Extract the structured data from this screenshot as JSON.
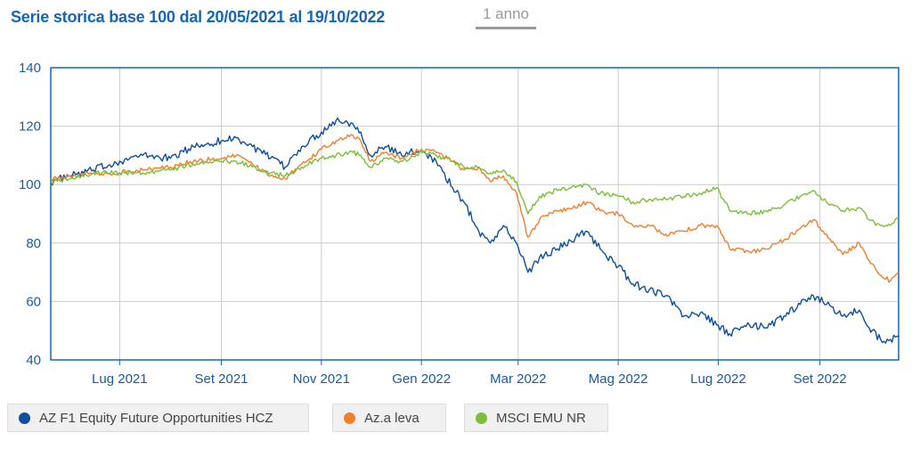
{
  "header": {
    "title": "Serie storica base 100 dal 20/05/2021 al 19/10/2022",
    "period_label": "1 anno"
  },
  "colors": {
    "grid": "#cccccc",
    "axis": "#1467b5",
    "text": "#1a5a9a"
  },
  "chart_data": {
    "type": "line",
    "title": "Serie storica base 100 dal 20/05/2021 al 19/10/2022",
    "xlabel": "",
    "ylabel": "",
    "ylim": [
      40,
      140
    ],
    "yticks": [
      40,
      60,
      80,
      100,
      120,
      140
    ],
    "xlim": [
      "2021-05-20",
      "2022-10-19"
    ],
    "xticks": [
      {
        "date": "2021-07-01",
        "label": "Lug 2021"
      },
      {
        "date": "2021-09-01",
        "label": "Set 2021"
      },
      {
        "date": "2021-11-01",
        "label": "Nov 2021"
      },
      {
        "date": "2022-01-01",
        "label": "Gen 2022"
      },
      {
        "date": "2022-03-01",
        "label": "Mar 2022"
      },
      {
        "date": "2022-05-01",
        "label": "Mag 2022"
      },
      {
        "date": "2022-07-01",
        "label": "Lug 2022"
      },
      {
        "date": "2022-09-01",
        "label": "Set 2022"
      }
    ],
    "grid": true,
    "legend": "bottom",
    "series": [
      {
        "name": "AZ F1 Equity Future Opportunities HCZ",
        "color": "#0d4f9c",
        "points": [
          [
            "2021-05-20",
            101
          ],
          [
            "2021-06-01",
            103
          ],
          [
            "2021-06-15",
            105
          ],
          [
            "2021-07-01",
            108
          ],
          [
            "2021-07-15",
            110
          ],
          [
            "2021-08-01",
            109
          ],
          [
            "2021-08-15",
            113
          ],
          [
            "2021-09-01",
            115
          ],
          [
            "2021-09-10",
            116
          ],
          [
            "2021-09-20",
            113
          ],
          [
            "2021-10-01",
            109
          ],
          [
            "2021-10-10",
            106
          ],
          [
            "2021-10-20",
            113
          ],
          [
            "2021-11-01",
            118
          ],
          [
            "2021-11-10",
            122
          ],
          [
            "2021-11-20",
            121
          ],
          [
            "2021-11-25",
            118
          ],
          [
            "2021-12-01",
            110
          ],
          [
            "2021-12-10",
            113
          ],
          [
            "2021-12-20",
            110
          ],
          [
            "2022-01-01",
            112
          ],
          [
            "2022-01-10",
            108
          ],
          [
            "2022-01-20",
            99
          ],
          [
            "2022-01-27",
            94
          ],
          [
            "2022-02-05",
            84
          ],
          [
            "2022-02-12",
            80
          ],
          [
            "2022-02-20",
            86
          ],
          [
            "2022-02-28",
            80
          ],
          [
            "2022-03-07",
            70
          ],
          [
            "2022-03-14",
            75
          ],
          [
            "2022-03-25",
            78
          ],
          [
            "2022-04-05",
            82
          ],
          [
            "2022-04-12",
            84
          ],
          [
            "2022-04-20",
            78
          ],
          [
            "2022-05-01",
            72
          ],
          [
            "2022-05-10",
            66
          ],
          [
            "2022-05-20",
            64
          ],
          [
            "2022-05-30",
            62
          ],
          [
            "2022-06-10",
            55
          ],
          [
            "2022-06-20",
            56
          ],
          [
            "2022-06-30",
            52
          ],
          [
            "2022-07-08",
            49
          ],
          [
            "2022-07-20",
            52
          ],
          [
            "2022-07-30",
            51
          ],
          [
            "2022-08-10",
            55
          ],
          [
            "2022-08-20",
            59
          ],
          [
            "2022-08-28",
            62
          ],
          [
            "2022-09-05",
            59
          ],
          [
            "2022-09-15",
            55
          ],
          [
            "2022-09-25",
            57
          ],
          [
            "2022-10-01",
            51
          ],
          [
            "2022-10-08",
            47
          ],
          [
            "2022-10-14",
            47
          ],
          [
            "2022-10-19",
            48
          ]
        ]
      },
      {
        "name": "Az.a leva",
        "color": "#f07f2c",
        "points": [
          [
            "2021-05-20",
            102
          ],
          [
            "2021-06-01",
            103
          ],
          [
            "2021-06-15",
            104
          ],
          [
            "2021-07-01",
            104
          ],
          [
            "2021-07-15",
            105
          ],
          [
            "2021-08-01",
            106
          ],
          [
            "2021-08-15",
            108
          ],
          [
            "2021-09-01",
            109
          ],
          [
            "2021-09-10",
            110
          ],
          [
            "2021-09-20",
            107
          ],
          [
            "2021-10-01",
            103
          ],
          [
            "2021-10-10",
            102
          ],
          [
            "2021-10-20",
            107
          ],
          [
            "2021-11-01",
            112
          ],
          [
            "2021-11-10",
            115
          ],
          [
            "2021-11-20",
            117
          ],
          [
            "2021-11-25",
            115
          ],
          [
            "2021-12-01",
            108
          ],
          [
            "2021-12-10",
            111
          ],
          [
            "2021-12-20",
            109
          ],
          [
            "2022-01-01",
            112
          ],
          [
            "2022-01-10",
            111
          ],
          [
            "2022-01-20",
            108
          ],
          [
            "2022-01-27",
            105
          ],
          [
            "2022-02-05",
            106
          ],
          [
            "2022-02-12",
            101
          ],
          [
            "2022-02-20",
            103
          ],
          [
            "2022-02-28",
            97
          ],
          [
            "2022-03-07",
            82
          ],
          [
            "2022-03-14",
            88
          ],
          [
            "2022-03-25",
            91
          ],
          [
            "2022-04-05",
            92
          ],
          [
            "2022-04-12",
            94
          ],
          [
            "2022-04-20",
            91
          ],
          [
            "2022-05-01",
            90
          ],
          [
            "2022-05-10",
            86
          ],
          [
            "2022-05-20",
            86
          ],
          [
            "2022-05-30",
            83
          ],
          [
            "2022-06-10",
            84
          ],
          [
            "2022-06-20",
            86
          ],
          [
            "2022-06-30",
            86
          ],
          [
            "2022-07-08",
            78
          ],
          [
            "2022-07-20",
            77
          ],
          [
            "2022-07-30",
            78
          ],
          [
            "2022-08-10",
            81
          ],
          [
            "2022-08-20",
            85
          ],
          [
            "2022-08-28",
            88
          ],
          [
            "2022-09-05",
            83
          ],
          [
            "2022-09-15",
            76
          ],
          [
            "2022-09-25",
            80
          ],
          [
            "2022-10-01",
            74
          ],
          [
            "2022-10-08",
            69
          ],
          [
            "2022-10-14",
            67
          ],
          [
            "2022-10-19",
            70
          ]
        ]
      },
      {
        "name": "MSCI EMU NR",
        "color": "#7cbf39",
        "points": [
          [
            "2021-05-20",
            101
          ],
          [
            "2021-06-01",
            102
          ],
          [
            "2021-06-15",
            104
          ],
          [
            "2021-07-01",
            104
          ],
          [
            "2021-07-15",
            104
          ],
          [
            "2021-08-01",
            105
          ],
          [
            "2021-08-15",
            107
          ],
          [
            "2021-09-01",
            108
          ],
          [
            "2021-09-10",
            108
          ],
          [
            "2021-09-20",
            106
          ],
          [
            "2021-10-01",
            104
          ],
          [
            "2021-10-10",
            103
          ],
          [
            "2021-10-20",
            106
          ],
          [
            "2021-11-01",
            109
          ],
          [
            "2021-11-10",
            110
          ],
          [
            "2021-11-20",
            111
          ],
          [
            "2021-11-25",
            110
          ],
          [
            "2021-12-01",
            106
          ],
          [
            "2021-12-10",
            109
          ],
          [
            "2021-12-20",
            108
          ],
          [
            "2022-01-01",
            111
          ],
          [
            "2022-01-10",
            110
          ],
          [
            "2022-01-20",
            108
          ],
          [
            "2022-01-27",
            106
          ],
          [
            "2022-02-05",
            106
          ],
          [
            "2022-02-12",
            104
          ],
          [
            "2022-02-20",
            105
          ],
          [
            "2022-02-28",
            101
          ],
          [
            "2022-03-07",
            90
          ],
          [
            "2022-03-14",
            96
          ],
          [
            "2022-03-25",
            98
          ],
          [
            "2022-04-05",
            99
          ],
          [
            "2022-04-12",
            100
          ],
          [
            "2022-04-20",
            97
          ],
          [
            "2022-05-01",
            96
          ],
          [
            "2022-05-10",
            94
          ],
          [
            "2022-05-20",
            95
          ],
          [
            "2022-05-30",
            95
          ],
          [
            "2022-06-10",
            96
          ],
          [
            "2022-06-20",
            97
          ],
          [
            "2022-06-30",
            99
          ],
          [
            "2022-07-08",
            91
          ],
          [
            "2022-07-20",
            90
          ],
          [
            "2022-07-30",
            91
          ],
          [
            "2022-08-10",
            93
          ],
          [
            "2022-08-20",
            96
          ],
          [
            "2022-08-28",
            98
          ],
          [
            "2022-09-05",
            94
          ],
          [
            "2022-09-15",
            91
          ],
          [
            "2022-09-25",
            92
          ],
          [
            "2022-10-01",
            88
          ],
          [
            "2022-10-08",
            86
          ],
          [
            "2022-10-14",
            86
          ],
          [
            "2022-10-19",
            89
          ]
        ]
      }
    ]
  }
}
